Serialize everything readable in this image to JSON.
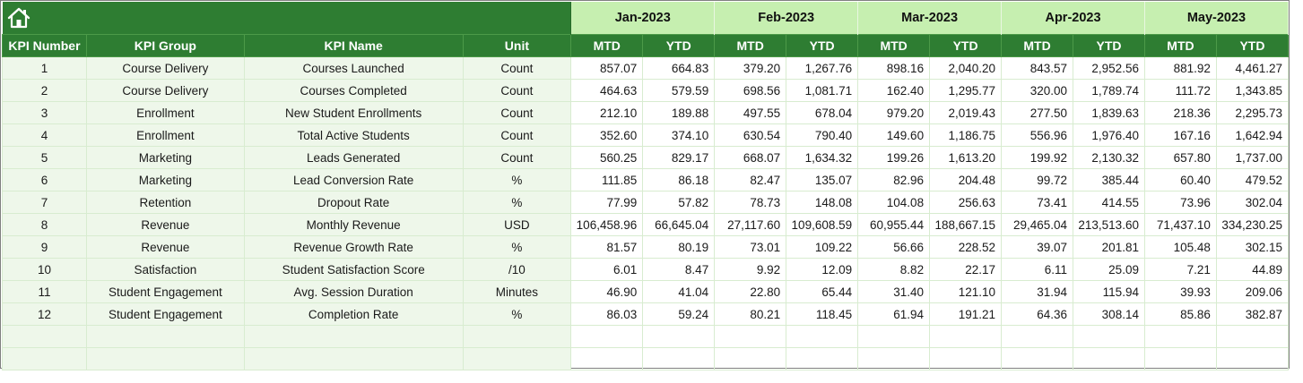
{
  "icons": {
    "home": "home-icon"
  },
  "months": [
    "Jan-2023",
    "Feb-2023",
    "Mar-2023",
    "Apr-2023",
    "May-2023"
  ],
  "columns": {
    "kpi_number": "KPI Number",
    "kpi_group": "KPI Group",
    "kpi_name": "KPI Name",
    "unit": "Unit",
    "mtd": "MTD",
    "ytd": "YTD"
  },
  "colors": {
    "header_green": "#2e7d32",
    "month_band": "#c6efb0",
    "row_tint": "#eef7ea",
    "grid_line": "#d8ecd0"
  },
  "rows": [
    {
      "num": "1",
      "group": "Course Delivery",
      "name": "Courses Launched",
      "unit": "Count",
      "values": [
        "857.07",
        "664.83",
        "379.20",
        "1,267.76",
        "898.16",
        "2,040.20",
        "843.57",
        "2,952.56",
        "881.92",
        "4,461.27"
      ]
    },
    {
      "num": "2",
      "group": "Course Delivery",
      "name": "Courses Completed",
      "unit": "Count",
      "values": [
        "464.63",
        "579.59",
        "698.56",
        "1,081.71",
        "162.40",
        "1,295.77",
        "320.00",
        "1,789.74",
        "111.72",
        "1,343.85"
      ]
    },
    {
      "num": "3",
      "group": "Enrollment",
      "name": "New Student Enrollments",
      "unit": "Count",
      "values": [
        "212.10",
        "189.88",
        "497.55",
        "678.04",
        "979.20",
        "2,019.43",
        "277.50",
        "1,839.63",
        "218.36",
        "2,295.73"
      ]
    },
    {
      "num": "4",
      "group": "Enrollment",
      "name": "Total Active Students",
      "unit": "Count",
      "values": [
        "352.60",
        "374.10",
        "630.54",
        "790.40",
        "149.60",
        "1,186.75",
        "556.96",
        "1,976.40",
        "167.16",
        "1,642.94"
      ]
    },
    {
      "num": "5",
      "group": "Marketing",
      "name": "Leads Generated",
      "unit": "Count",
      "values": [
        "560.25",
        "829.17",
        "668.07",
        "1,634.32",
        "199.26",
        "1,613.20",
        "199.92",
        "2,130.32",
        "657.80",
        "1,737.00"
      ]
    },
    {
      "num": "6",
      "group": "Marketing",
      "name": "Lead Conversion Rate",
      "unit": "%",
      "values": [
        "111.85",
        "86.18",
        "82.47",
        "135.07",
        "82.96",
        "204.48",
        "99.72",
        "385.44",
        "60.40",
        "479.52"
      ]
    },
    {
      "num": "7",
      "group": "Retention",
      "name": "Dropout Rate",
      "unit": "%",
      "values": [
        "77.99",
        "57.82",
        "78.73",
        "148.08",
        "104.08",
        "256.63",
        "73.41",
        "414.55",
        "73.96",
        "302.04"
      ]
    },
    {
      "num": "8",
      "group": "Revenue",
      "name": "Monthly Revenue",
      "unit": "USD",
      "values": [
        "106,458.96",
        "66,645.04",
        "27,117.60",
        "109,608.59",
        "60,955.44",
        "188,667.15",
        "29,465.04",
        "213,513.60",
        "71,437.10",
        "334,230.25"
      ]
    },
    {
      "num": "9",
      "group": "Revenue",
      "name": "Revenue Growth Rate",
      "unit": "%",
      "values": [
        "81.57",
        "80.19",
        "73.01",
        "109.22",
        "56.66",
        "228.52",
        "39.07",
        "201.81",
        "105.48",
        "302.15"
      ]
    },
    {
      "num": "10",
      "group": "Satisfaction",
      "name": "Student Satisfaction Score",
      "unit": "/10",
      "values": [
        "6.01",
        "8.47",
        "9.92",
        "12.09",
        "8.82",
        "22.17",
        "6.11",
        "25.09",
        "7.21",
        "44.89"
      ]
    },
    {
      "num": "11",
      "group": "Student Engagement",
      "name": "Avg. Session Duration",
      "unit": "Minutes",
      "values": [
        "46.90",
        "41.04",
        "22.80",
        "65.44",
        "31.40",
        "121.10",
        "31.94",
        "115.94",
        "39.93",
        "209.06"
      ]
    },
    {
      "num": "12",
      "group": "Student Engagement",
      "name": "Completion Rate",
      "unit": "%",
      "values": [
        "86.03",
        "59.24",
        "80.21",
        "118.45",
        "61.94",
        "191.21",
        "64.36",
        "308.14",
        "85.86",
        "382.87"
      ]
    }
  ],
  "empty_rows": 2
}
